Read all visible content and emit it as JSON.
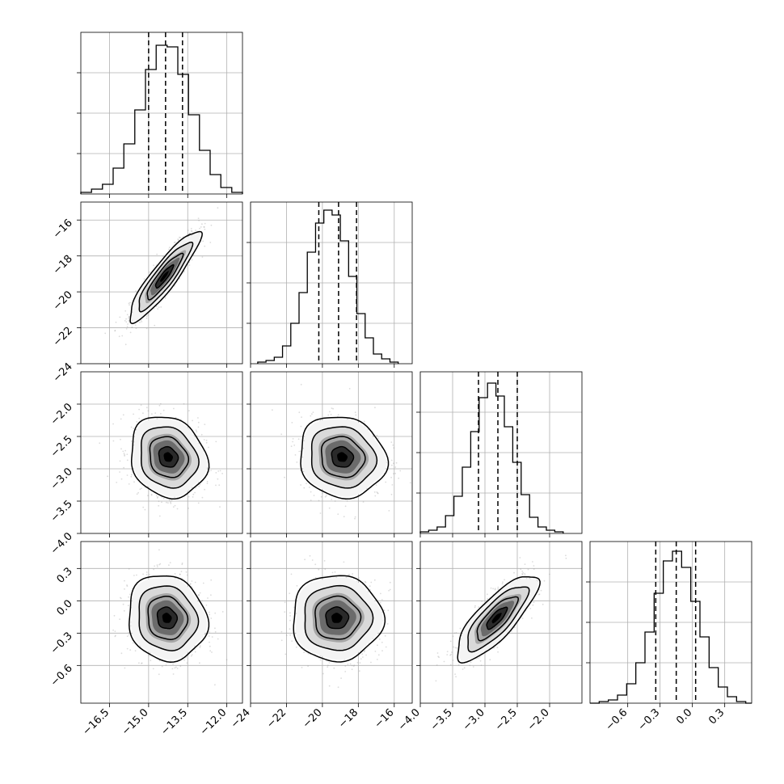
{
  "figure": {
    "title": "",
    "parameter_labels": [
      "",
      "",
      "",
      ""
    ]
  },
  "style": {
    "frame_color": "#000000",
    "grid_color": "#b0b0b0",
    "point_color": "#9a9a9a",
    "hist_color": "#000000",
    "quantile_color": "#000000",
    "shade_colors": [
      "#f4f4f4",
      "#d9d9d9",
      "#a6a6a6",
      "#6b6b6b",
      "#2a2a2a",
      "#000000"
    ]
  },
  "chart_data": {
    "type": "corner",
    "grid": true,
    "parameters": [
      {
        "index": 0,
        "range": [
          -17.6,
          -11.4
        ],
        "ticks": [
          -16.5,
          -15.0,
          -13.5,
          -12.0
        ],
        "tick_labels": [
          "−16.5",
          "−15.0",
          "−13.5",
          "−12.0"
        ],
        "quantiles": [
          -15.0,
          -14.35,
          -13.7
        ],
        "hist": {
          "bin_edges": [
            -17.6,
            -17.19,
            -16.77,
            -16.36,
            -15.95,
            -15.53,
            -15.12,
            -14.71,
            -14.29,
            -13.88,
            -13.47,
            -13.05,
            -12.64,
            -12.23,
            -11.81,
            -11.4
          ],
          "counts": [
            1,
            3,
            6,
            16,
            31,
            52,
            77,
            92,
            91,
            74,
            49,
            27,
            12,
            4,
            1
          ]
        },
        "ylim": [
          0,
          100
        ]
      },
      {
        "index": 1,
        "range": [
          -24.0,
          -15.0
        ],
        "ticks": [
          -24,
          -22,
          -20,
          -18,
          -16
        ],
        "tick_labels": [
          "−24",
          "−22",
          "−20",
          "−18",
          "−16"
        ],
        "quantiles": [
          -20.2,
          -19.1,
          -18.1
        ],
        "hist": {
          "bin_edges": [
            -23.6,
            -23.14,
            -22.68,
            -22.22,
            -21.76,
            -21.3,
            -20.84,
            -20.38,
            -19.92,
            -19.46,
            -19.0,
            -18.54,
            -18.08,
            -17.62,
            -17.16,
            -16.7,
            -16.24,
            -15.78
          ],
          "counts": [
            1,
            2,
            4,
            11,
            25,
            44,
            69,
            87,
            95,
            92,
            76,
            54,
            31,
            16,
            6,
            3,
            1
          ]
        },
        "ylim": [
          0,
          100
        ]
      },
      {
        "index": 2,
        "range": [
          -4.0,
          -1.5
        ],
        "ticks": [
          -4.0,
          -3.5,
          -3.0,
          -2.5,
          -2.0
        ],
        "tick_labels": [
          "−4.0",
          "−3.5",
          "−3.0",
          "−2.5",
          "−2.0"
        ],
        "quantiles": [
          -3.1,
          -2.8,
          -2.5
        ],
        "hist": {
          "bin_edges": [
            -4.0,
            -3.87,
            -3.74,
            -3.61,
            -3.48,
            -3.35,
            -3.22,
            -3.09,
            -2.96,
            -2.83,
            -2.7,
            -2.57,
            -2.44,
            -2.31,
            -2.18,
            -2.05,
            -1.92,
            -1.79
          ],
          "counts": [
            1,
            2,
            4,
            11,
            23,
            41,
            63,
            84,
            93,
            85,
            66,
            44,
            24,
            10,
            4,
            2,
            1
          ]
        },
        "ylim": [
          0,
          100
        ]
      },
      {
        "index": 3,
        "range": [
          -0.95,
          0.55
        ],
        "ticks": [
          -0.6,
          -0.3,
          0.0,
          0.3
        ],
        "tick_labels": [
          "−0.6",
          "−0.3",
          "0.0",
          "0.3"
        ],
        "quantiles": [
          -0.34,
          -0.15,
          0.03
        ],
        "hist": {
          "bin_edges": [
            -0.95,
            -0.865,
            -0.78,
            -0.695,
            -0.61,
            -0.525,
            -0.44,
            -0.355,
            -0.27,
            -0.185,
            -0.1,
            -0.015,
            0.07,
            0.155,
            0.24,
            0.325,
            0.41,
            0.495,
            0.55
          ],
          "counts": [
            0,
            1,
            2,
            5,
            12,
            25,
            44,
            68,
            88,
            94,
            84,
            63,
            41,
            22,
            10,
            4,
            1,
            0
          ]
        },
        "ylim": [
          0,
          100
        ]
      }
    ],
    "pairs": [
      {
        "x": 0,
        "y": 1,
        "mean": [
          -14.4,
          -19.15
        ],
        "sd": [
          0.65,
          1.2
        ],
        "corr": 0.9
      },
      {
        "x": 0,
        "y": 2,
        "mean": [
          -14.25,
          -2.82
        ],
        "sd": [
          0.7,
          0.3
        ],
        "corr": -0.15
      },
      {
        "x": 1,
        "y": 2,
        "mean": [
          -18.9,
          -2.82
        ],
        "sd": [
          1.15,
          0.3
        ],
        "corr": -0.1
      },
      {
        "x": 0,
        "y": 3,
        "mean": [
          -14.3,
          -0.16
        ],
        "sd": [
          0.72,
          0.19
        ],
        "corr": -0.1
      },
      {
        "x": 1,
        "y": 3,
        "mean": [
          -19.2,
          -0.16
        ],
        "sd": [
          1.2,
          0.19
        ],
        "corr": 0.0
      },
      {
        "x": 2,
        "y": 3,
        "mean": [
          -2.82,
          -0.16
        ],
        "sd": [
          0.3,
          0.19
        ],
        "corr": 0.8
      }
    ],
    "contour_levels_sigma": [
      0.5,
      1.0,
      1.5,
      2.0
    ]
  }
}
